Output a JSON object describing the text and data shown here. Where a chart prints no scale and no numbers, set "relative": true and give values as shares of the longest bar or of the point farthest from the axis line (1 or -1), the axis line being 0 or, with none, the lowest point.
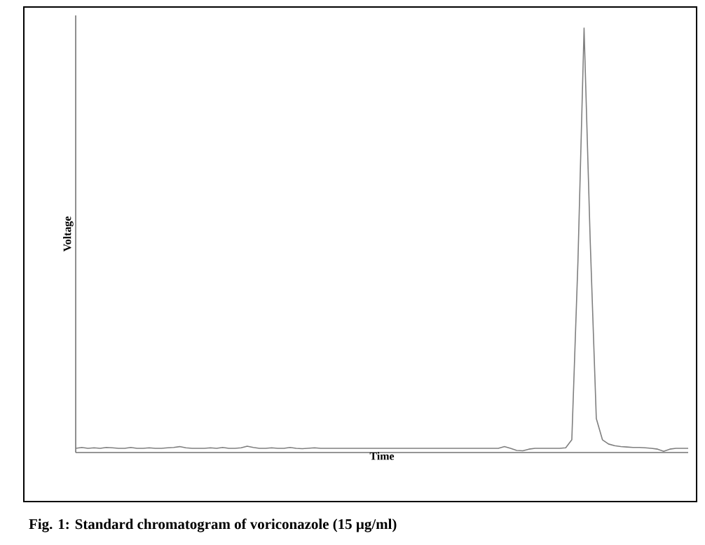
{
  "chart_data": {
    "type": "line",
    "title": "**Fig. 1: Standard chromatogram of voriconazole (15 µg/ml)**",
    "xlabel": "Time",
    "ylabel": "Voltage",
    "relative": true,
    "categories": [
      null,
      null,
      null,
      null,
      null,
      null,
      null,
      null,
      null,
      null,
      null,
      null,
      null,
      null,
      null,
      null,
      null,
      null,
      null,
      null,
      null,
      null,
      null,
      null,
      null,
      null,
      null,
      null,
      null,
      null,
      null,
      null,
      null,
      null,
      null,
      null,
      null,
      null,
      null,
      null,
      null,
      null,
      null,
      null,
      null,
      null,
      null,
      null,
      null,
      null,
      null,
      null,
      null,
      null,
      null,
      null,
      null,
      null,
      null,
      null,
      null,
      null,
      null,
      null,
      null,
      null,
      null,
      null,
      null,
      null,
      null,
      null,
      null,
      null,
      null,
      null,
      null,
      null,
      null,
      null,
      null,
      null,
      null,
      null,
      null,
      null,
      null,
      null,
      null,
      null,
      null,
      null,
      null,
      null,
      null,
      null,
      null,
      null,
      null,
      null,
      null
    ],
    "series": [
      {
        "color": "#7f7f7f",
        "values": [
          0.01,
          0.012,
          0.01,
          0.011,
          0.01,
          0.012,
          0.011,
          0.01,
          0.01,
          0.012,
          0.01,
          0.01,
          0.011,
          0.01,
          0.01,
          0.011,
          0.012,
          0.014,
          0.011,
          0.01,
          0.01,
          0.01,
          0.011,
          0.01,
          0.012,
          0.01,
          0.01,
          0.011,
          0.015,
          0.012,
          0.01,
          0.01,
          0.011,
          0.01,
          0.01,
          0.012,
          0.01,
          0.009,
          0.01,
          0.011,
          0.01,
          0.01,
          0.01,
          0.01,
          0.01,
          0.01,
          0.01,
          0.01,
          0.01,
          0.01,
          0.01,
          0.01,
          0.01,
          0.01,
          0.01,
          0.01,
          0.01,
          0.01,
          0.01,
          0.01,
          0.01,
          0.01,
          0.01,
          0.01,
          0.01,
          0.01,
          0.01,
          0.01,
          0.01,
          0.01,
          0.014,
          0.01,
          0.005,
          0.004,
          0.008,
          0.01,
          0.01,
          0.01,
          0.01,
          0.01,
          0.011,
          0.03,
          0.45,
          1.0,
          0.5,
          0.08,
          0.03,
          0.02,
          0.016,
          0.014,
          0.013,
          0.012,
          0.012,
          0.011,
          0.01,
          0.008,
          0.003,
          0.008,
          0.01,
          0.01,
          0.01
        ]
      }
    ]
  }
}
